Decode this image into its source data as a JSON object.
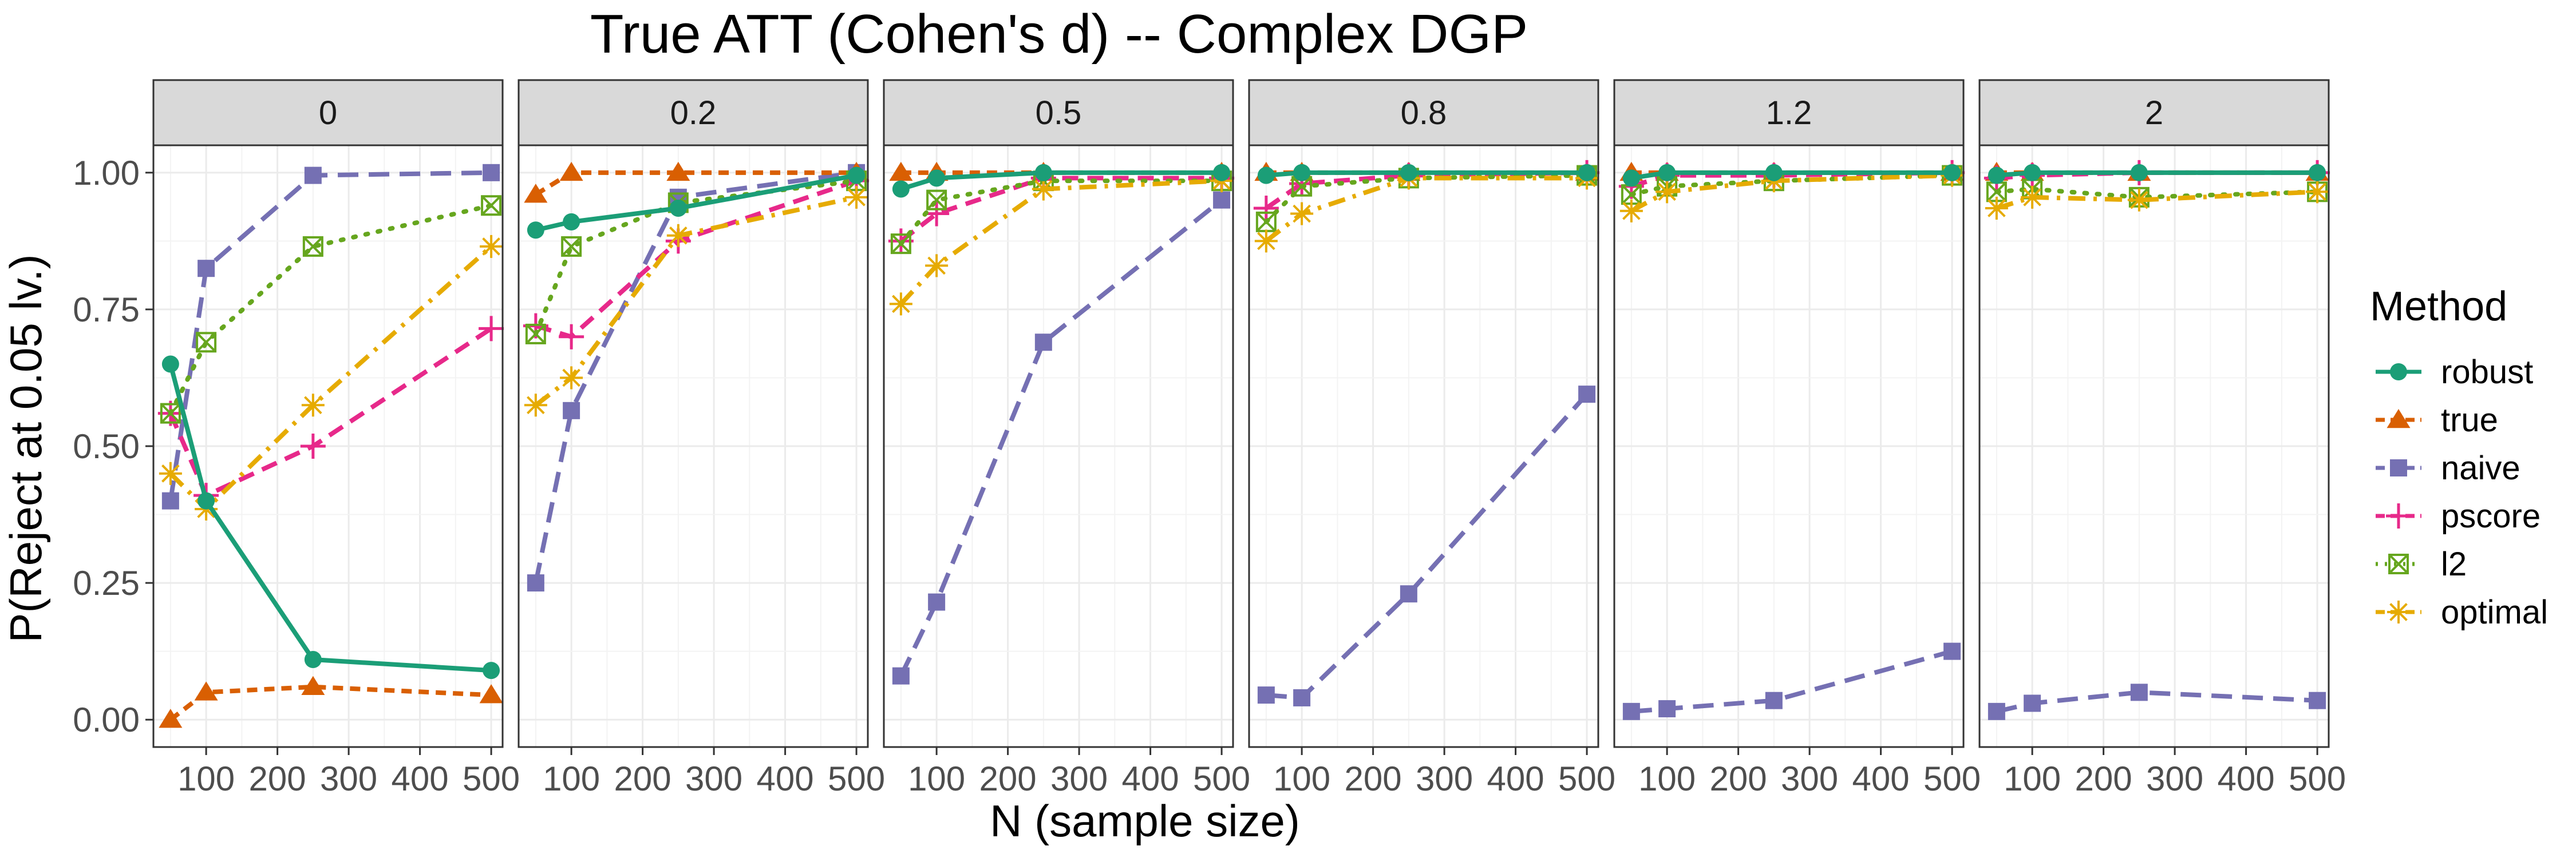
{
  "chart_data": {
    "type": "line",
    "title": "True ATT (Cohen's d) -- Complex DGP",
    "xlabel": "N (sample size)",
    "ylabel": "P(Reject at 0.05 lv.)",
    "xlim": [
      26,
      516
    ],
    "ylim": [
      -0.05,
      1.05
    ],
    "x": [
      50,
      100,
      250,
      500
    ],
    "xticks": [
      100,
      200,
      300,
      400,
      500
    ],
    "xtick_labels": [
      "100",
      "200",
      "300",
      "400",
      "500"
    ],
    "yticks": [
      0,
      0.25,
      0.5,
      0.75,
      1.0
    ],
    "ytick_labels": [
      "0.00",
      "0.25",
      "0.50",
      "0.75",
      "1.00"
    ],
    "legend": {
      "title": "Method",
      "position": "right",
      "entries": [
        "robust",
        "true",
        "naive",
        "pscore",
        "l2",
        "optimal"
      ]
    },
    "methods": [
      {
        "name": "robust",
        "color": "#1b9e77",
        "marker": "circle",
        "dash": "solid"
      },
      {
        "name": "true",
        "color": "#d95f02",
        "marker": "triangle",
        "dash": "dashed-short"
      },
      {
        "name": "naive",
        "color": "#7570b3",
        "marker": "square",
        "dash": "dashed-long"
      },
      {
        "name": "pscore",
        "color": "#e7298a",
        "marker": "plus",
        "dash": "dashed"
      },
      {
        "name": "l2",
        "color": "#66a61e",
        "marker": "boxed-x",
        "dash": "dotted"
      },
      {
        "name": "optimal",
        "color": "#e6ab02",
        "marker": "asterisk",
        "dash": "dot-dash"
      }
    ],
    "panels": [
      {
        "label": "0",
        "series": {
          "robust": [
            0.65,
            0.4,
            0.11,
            0.09
          ],
          "true": [
            0.0,
            0.05,
            0.06,
            0.045
          ],
          "naive": [
            0.4,
            0.825,
            0.995,
            1.0
          ],
          "pscore": [
            0.56,
            0.41,
            0.5,
            0.715
          ],
          "l2": [
            0.56,
            0.69,
            0.865,
            0.94
          ],
          "optimal": [
            0.45,
            0.385,
            0.575,
            0.865
          ]
        }
      },
      {
        "label": "0.2",
        "series": {
          "robust": [
            0.895,
            0.91,
            0.935,
            0.995
          ],
          "true": [
            0.96,
            1.0,
            1.0,
            1.0
          ],
          "naive": [
            0.25,
            0.565,
            0.955,
            1.0
          ],
          "pscore": [
            0.72,
            0.7,
            0.875,
            0.985
          ],
          "l2": [
            0.705,
            0.865,
            0.945,
            0.985
          ],
          "optimal": [
            0.575,
            0.625,
            0.885,
            0.955
          ]
        }
      },
      {
        "label": "0.5",
        "series": {
          "robust": [
            0.97,
            0.99,
            1.0,
            1.0
          ],
          "true": [
            1.0,
            1.0,
            1.0,
            1.0
          ],
          "naive": [
            0.08,
            0.215,
            0.69,
            0.95
          ],
          "pscore": [
            0.875,
            0.925,
            0.99,
            0.99
          ],
          "l2": [
            0.87,
            0.95,
            0.985,
            0.985
          ],
          "optimal": [
            0.76,
            0.83,
            0.97,
            0.985
          ]
        }
      },
      {
        "label": "0.8",
        "series": {
          "robust": [
            0.995,
            1.0,
            1.0,
            1.0
          ],
          "true": [
            1.0,
            1.0,
            1.0,
            1.0
          ],
          "naive": [
            0.045,
            0.04,
            0.23,
            0.595
          ],
          "pscore": [
            0.935,
            0.98,
            0.995,
            1.0
          ],
          "l2": [
            0.91,
            0.975,
            0.99,
            0.995
          ],
          "optimal": [
            0.875,
            0.925,
            0.99,
            0.99
          ]
        }
      },
      {
        "label": "1.2",
        "series": {
          "robust": [
            0.99,
            1.0,
            1.0,
            1.0
          ],
          "true": [
            1.0,
            1.0,
            1.0,
            1.0
          ],
          "naive": [
            0.015,
            0.02,
            0.035,
            0.125
          ],
          "pscore": [
            0.975,
            0.995,
            0.995,
            1.0
          ],
          "l2": [
            0.96,
            0.975,
            0.985,
            0.995
          ],
          "optimal": [
            0.93,
            0.965,
            0.985,
            0.995
          ]
        }
      },
      {
        "label": "2",
        "series": {
          "robust": [
            0.995,
            1.0,
            1.0,
            1.0
          ],
          "true": [
            1.0,
            1.0,
            1.0,
            1.0
          ],
          "naive": [
            0.015,
            0.03,
            0.05,
            0.035
          ],
          "pscore": [
            0.99,
            0.995,
            1.0,
            1.0
          ],
          "l2": [
            0.965,
            0.97,
            0.955,
            0.965
          ],
          "optimal": [
            0.935,
            0.955,
            0.95,
            0.965
          ]
        }
      }
    ]
  }
}
